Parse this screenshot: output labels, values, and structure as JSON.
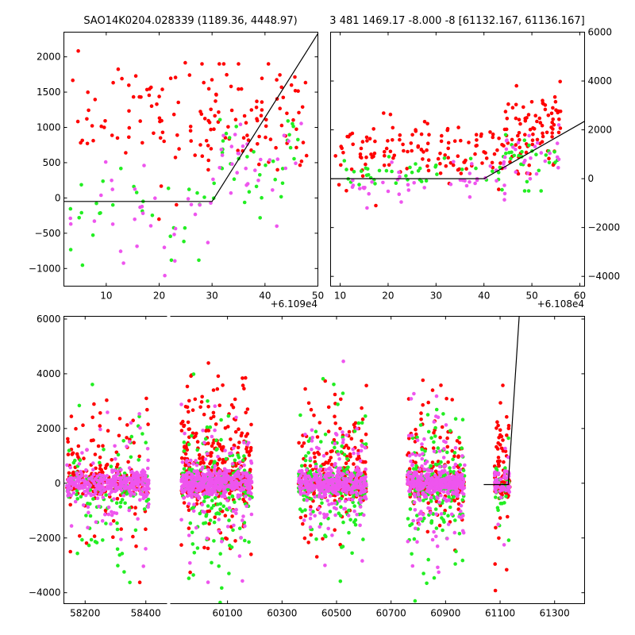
{
  "chart_data": [
    {
      "id": "panel_a",
      "type": "scatter",
      "title": "SAO14K0204.028339 (1189.36, 4448.97)",
      "x_offset_label": "+6.109e4",
      "xlim": [
        2,
        50
      ],
      "ylim": [
        -1250,
        2350
      ],
      "x_ticks": [
        10,
        20,
        30,
        40,
        50
      ],
      "y_ticks": [
        -1000,
        -500,
        0,
        500,
        1000,
        1500,
        2000
      ],
      "x_tick_labels": [
        "10",
        "20",
        "30",
        "40",
        "50"
      ],
      "y_tick_labels": [
        "−1000",
        "−500",
        "0",
        "500",
        "1000",
        "1500",
        "2000"
      ],
      "y_axis_side": "left",
      "model_line": {
        "x": [
          2,
          30,
          50
        ],
        "y": [
          -50,
          -50,
          2330
        ]
      },
      "series": [
        {
          "name": "red",
          "color": "#ff0000",
          "count": 150,
          "seed": 11,
          "clusters": [
            {
              "frac": 0.45,
              "x": [
                3,
                30
              ],
              "y_mean": 1150,
              "y_sd": 420,
              "y_range": [
                -300,
                2350
              ]
            },
            {
              "frac": 0.55,
              "x": [
                28,
                48
              ],
              "y_mean": 1100,
              "y_sd": 380,
              "y_range": [
                300,
                1900
              ]
            }
          ]
        },
        {
          "name": "green",
          "color": "#22ee22",
          "count": 65,
          "seed": 23,
          "clusters": [
            {
              "frac": 0.45,
              "x": [
                3,
                30
              ],
              "y_mean": -250,
              "y_sd": 450,
              "y_range": [
                -1100,
                450
              ]
            },
            {
              "frac": 0.55,
              "x": [
                30,
                47
              ],
              "y_mean": 500,
              "y_sd": 350,
              "y_range": [
                -900,
                1300
              ]
            }
          ]
        },
        {
          "name": "magenta",
          "color": "#ee55ee",
          "count": 60,
          "seed": 37,
          "clusters": [
            {
              "frac": 0.5,
              "x": [
                3,
                30
              ],
              "y_mean": -250,
              "y_sd": 420,
              "y_range": [
                -1100,
                700
              ]
            },
            {
              "frac": 0.5,
              "x": [
                30,
                47
              ],
              "y_mean": 450,
              "y_sd": 350,
              "y_range": [
                -400,
                1400
              ]
            }
          ]
        }
      ]
    },
    {
      "id": "panel_b",
      "type": "scatter",
      "title": "3 481 1469.17 -8.000 -8 [61132.167, 61136.167]",
      "x_offset_label": "+6.108e4",
      "xlim": [
        8,
        61
      ],
      "ylim": [
        -4400,
        6000
      ],
      "x_ticks": [
        10,
        20,
        30,
        40,
        50,
        60
      ],
      "y_ticks": [
        -4000,
        -2000,
        0,
        2000,
        4000,
        6000
      ],
      "x_tick_labels": [
        "10",
        "20",
        "30",
        "40",
        "50",
        "60"
      ],
      "y_tick_labels": [
        "−4000",
        "−2000",
        "0",
        "2000",
        "4000",
        "6000"
      ],
      "y_axis_side": "right",
      "model_line": {
        "x": [
          8,
          40,
          61
        ],
        "y": [
          0,
          0,
          2350
        ]
      },
      "series": [
        {
          "name": "red",
          "color": "#ff0000",
          "count": 210,
          "seed": 41,
          "clusters": [
            {
              "frac": 0.6,
              "x": [
                9,
                45
              ],
              "y_mean": 1100,
              "y_sd": 600,
              "y_range": [
                -1600,
                3300
              ]
            },
            {
              "frac": 0.4,
              "x": [
                44,
                56
              ],
              "y_mean": 1900,
              "y_sd": 900,
              "y_range": [
                200,
                4700
              ]
            }
          ]
        },
        {
          "name": "green",
          "color": "#22ee22",
          "count": 70,
          "seed": 53,
          "clusters": [
            {
              "frac": 0.6,
              "x": [
                9,
                45
              ],
              "y_mean": 200,
              "y_sd": 300,
              "y_range": [
                -800,
                900
              ]
            },
            {
              "frac": 0.4,
              "x": [
                44,
                56
              ],
              "y_mean": 800,
              "y_sd": 500,
              "y_range": [
                -500,
                2000
              ]
            }
          ]
        },
        {
          "name": "magenta",
          "color": "#ee55ee",
          "count": 70,
          "seed": 67,
          "clusters": [
            {
              "frac": 0.6,
              "x": [
                9,
                45
              ],
              "y_mean": -200,
              "y_sd": 350,
              "y_range": [
                -1200,
                700
              ]
            },
            {
              "frac": 0.4,
              "x": [
                44,
                56
              ],
              "y_mean": 900,
              "y_sd": 600,
              "y_range": [
                -300,
                2200
              ]
            }
          ]
        }
      ]
    },
    {
      "id": "panel_c",
      "type": "scatter",
      "title": "",
      "x_offset_label": "",
      "xlim": [
        58130,
        61410
      ],
      "ylim": [
        -4400,
        6100
      ],
      "x_ticks": [
        58200,
        58400,
        60100,
        60300,
        60500,
        60700,
        60900,
        61100,
        61300
      ],
      "y_ticks": [
        -4000,
        -2000,
        0,
        2000,
        4000,
        6000
      ],
      "x_tick_labels": [
        "58200",
        "58400",
        "60100",
        "60300",
        "60500",
        "60700",
        "60900",
        "61100",
        "61300"
      ],
      "y_tick_labels": [
        "−4000",
        "−2000",
        "0",
        "2000",
        "4000",
        "6000"
      ],
      "y_axis_side": "left",
      "axis_break": [
        58470,
        59890
      ],
      "segment_line": {
        "x": [
          61040,
          61110
        ],
        "y": [
          -50,
          -50
        ]
      },
      "model_line": {
        "x": [
          61110,
          61130,
          61170
        ],
        "y": [
          -50,
          -50,
          6100
        ]
      },
      "seasons": [
        {
          "x": [
            58140,
            58410
          ],
          "red": 260,
          "green": 140,
          "magenta": 260,
          "core": 260,
          "wide_red": 1400,
          "wide_green": 1300,
          "wide_mag": 1100
        },
        {
          "x": [
            59930,
            60190
          ],
          "red": 520,
          "green": 220,
          "magenta": 330,
          "core": 330,
          "wide_red": 1700,
          "wide_green": 1500,
          "wide_mag": 1100
        },
        {
          "x": [
            60360,
            60610
          ],
          "red": 280,
          "green": 200,
          "magenta": 330,
          "core": 300,
          "wide_red": 1500,
          "wide_green": 1400,
          "wide_mag": 1200
        },
        {
          "x": [
            60760,
            60970
          ],
          "red": 260,
          "green": 220,
          "magenta": 330,
          "core": 300,
          "wide_red": 1500,
          "wide_green": 1500,
          "wide_mag": 1200
        },
        {
          "x": [
            61080,
            61136
          ],
          "red": 110,
          "green": 30,
          "magenta": 40,
          "core": 40,
          "wide_red": 1800,
          "wide_green": 900,
          "wide_mag": 900
        }
      ],
      "series": [
        {
          "name": "red",
          "color": "#ff0000",
          "seed": 101
        },
        {
          "name": "green",
          "color": "#22ee22",
          "seed": 202
        },
        {
          "name": "magenta",
          "color": "#ee55ee",
          "seed": 303
        }
      ]
    }
  ]
}
